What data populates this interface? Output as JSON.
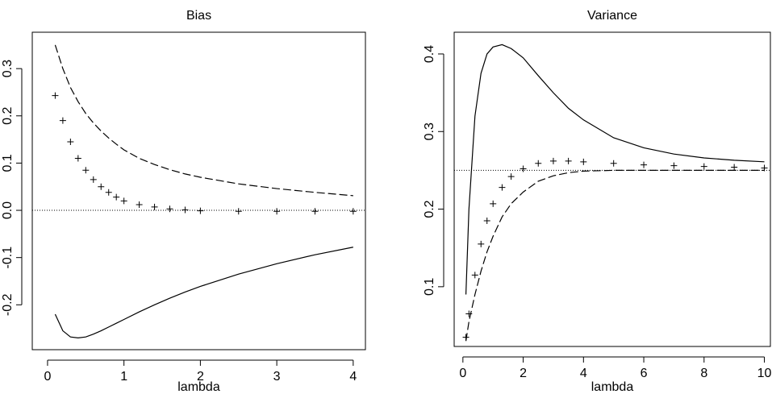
{
  "chart_data": [
    {
      "type": "line",
      "title": "Bias",
      "x_label": "lambda",
      "x": [
        0.1,
        0.2,
        0.3,
        0.4,
        0.5,
        0.6,
        0.7,
        0.8,
        0.9,
        1.0,
        1.2,
        1.4,
        1.6,
        1.8,
        2.0,
        2.5,
        3.0,
        3.5,
        4.0
      ],
      "series": [
        {
          "style": "dashed",
          "color": "#000000",
          "values": [
            0.35,
            0.3,
            0.26,
            0.23,
            0.205,
            0.185,
            0.168,
            0.153,
            0.14,
            0.128,
            0.11,
            0.097,
            0.086,
            0.077,
            0.07,
            0.056,
            0.046,
            0.038,
            0.031
          ]
        },
        {
          "style": "solid",
          "color": "#000000",
          "values": [
            -0.22,
            -0.255,
            -0.268,
            -0.27,
            -0.268,
            -0.262,
            -0.255,
            -0.247,
            -0.239,
            -0.231,
            -0.215,
            -0.2,
            -0.186,
            -0.173,
            -0.161,
            -0.135,
            -0.113,
            -0.094,
            -0.078
          ]
        },
        {
          "style": "points",
          "color": "#000000",
          "values": [
            0.243,
            0.19,
            0.145,
            0.11,
            0.085,
            0.065,
            0.05,
            0.038,
            0.028,
            0.02,
            0.012,
            0.007,
            0.003,
            0.001,
            -0.001,
            -0.002,
            -0.002,
            -0.002,
            -0.002
          ]
        }
      ],
      "hline": 0,
      "xlim": [
        -0.2,
        4.16
      ],
      "xticks": [
        0,
        1,
        2,
        3,
        4
      ],
      "ylim": [
        -0.295,
        0.377
      ],
      "yticks": [
        {
          "value": -0.2,
          "label": "-0.2"
        },
        {
          "value": -0.1,
          "label": "-0.1"
        },
        {
          "value": 0,
          "label": "0.0"
        },
        0.1,
        0.2,
        0.3
      ]
    },
    {
      "type": "line",
      "title": "Variance",
      "x_label": "lambda",
      "x": [
        0.1,
        0.2,
        0.4,
        0.6,
        0.8,
        1.0,
        1.3,
        1.6,
        2,
        2.5,
        3,
        3.5,
        4,
        5,
        6,
        7,
        8,
        9,
        10
      ],
      "series": [
        {
          "style": "solid",
          "color": "#000000",
          "values": [
            0.09,
            0.2,
            0.32,
            0.375,
            0.4,
            0.409,
            0.412,
            0.407,
            0.395,
            0.372,
            0.35,
            0.33,
            0.315,
            0.292,
            0.279,
            0.271,
            0.266,
            0.263,
            0.261
          ]
        },
        {
          "style": "dashed",
          "color": "#000000",
          "values": [
            0.03,
            0.055,
            0.09,
            0.12,
            0.145,
            0.165,
            0.19,
            0.207,
            0.222,
            0.236,
            0.243,
            0.247,
            0.249,
            0.25,
            0.25,
            0.25,
            0.25,
            0.25,
            0.25
          ]
        },
        {
          "style": "points",
          "color": "#000000",
          "values": [
            0.035,
            0.065,
            0.115,
            0.155,
            0.185,
            0.207,
            0.228,
            0.242,
            0.252,
            0.259,
            0.262,
            0.262,
            0.261,
            0.259,
            0.257,
            0.256,
            0.255,
            0.254,
            0.253
          ]
        }
      ],
      "hline": 0.25,
      "xlim": [
        -0.29,
        10.2
      ],
      "xticks": [
        0,
        2,
        4,
        6,
        8,
        10
      ],
      "ylim": [
        0.023,
        0.428
      ],
      "yticks": [
        0.1,
        0.2,
        0.3,
        0.4
      ]
    }
  ]
}
